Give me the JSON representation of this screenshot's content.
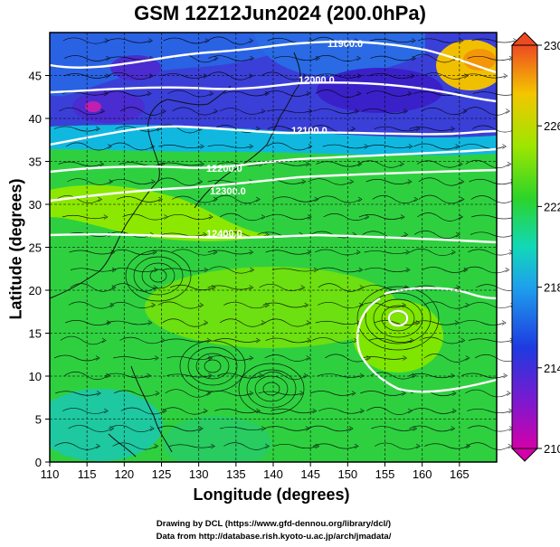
{
  "title": "GSM 12Z12Jun2024 (200.0hPa)",
  "credits": {
    "line1": "Drawing by DCL (https://www.gfd-dennou.org/library/dcl/)",
    "line2": "Data from http://database.rish.kyoto-u.ac.jp/arch/jmadata/"
  },
  "chart_data": {
    "type": "heatmap",
    "title": "GSM 12Z12Jun2024 (200.0hPa)",
    "xlabel": "Longitude (degrees)",
    "ylabel": "Latitude  (degrees)",
    "xlim": [
      110,
      170
    ],
    "ylim": [
      0,
      50
    ],
    "x_ticks": [
      "110",
      "115",
      "120",
      "125",
      "130",
      "135",
      "140",
      "145",
      "150",
      "155",
      "160",
      "165"
    ],
    "y_ticks": [
      "0",
      "5",
      "10",
      "15",
      "20",
      "25",
      "30",
      "35",
      "40",
      "45"
    ],
    "colorbar": {
      "min": 210,
      "max": 230,
      "labels": [
        "230",
        "226",
        "222",
        "218",
        "214",
        "210"
      ],
      "colors": [
        "#d400aa",
        "#2a1ad8",
        "#1f6be6",
        "#11c8dc",
        "#2bd42a",
        "#7ee600",
        "#b4e800",
        "#f0d200",
        "#f39c00",
        "#ee5522"
      ]
    },
    "contours": [
      {
        "label": "11900.0"
      },
      {
        "label": "12000.0"
      },
      {
        "label": "12100.0"
      },
      {
        "label": "12200.0"
      },
      {
        "label": "12300.0"
      },
      {
        "label": "12400.0"
      }
    ],
    "grid": true
  }
}
